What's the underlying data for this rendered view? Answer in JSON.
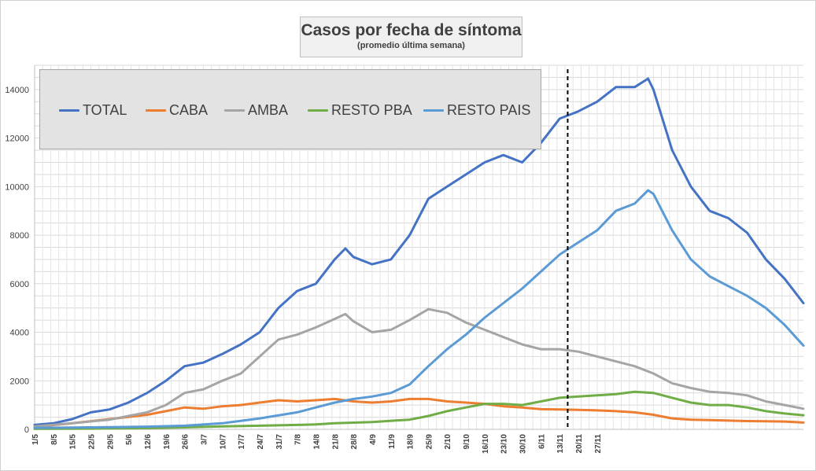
{
  "title": "Casos por fecha de síntoma",
  "subtitle": "(promedio última semana)",
  "chart_data": {
    "type": "line",
    "ylim": [
      0,
      15000
    ],
    "yticks": [
      0,
      2000,
      4000,
      6000,
      8000,
      10000,
      12000,
      14000
    ],
    "grid": true,
    "legend_position": "top-left",
    "x_tick_labels": [
      "1/5",
      "8/5",
      "15/5",
      "22/5",
      "29/5",
      "5/6",
      "12/6",
      "19/6",
      "26/6",
      "3/7",
      "10/7",
      "17/7",
      "24/7",
      "31/7",
      "7/8",
      "14/8",
      "21/8",
      "28/8",
      "4/9",
      "11/9",
      "18/9",
      "25/9",
      "2/10",
      "9/10",
      "16/10",
      "23/10",
      "30/10",
      "6/11",
      "13/11",
      "20/11",
      "27/11"
    ],
    "reference_line_day": 199,
    "series": [
      {
        "name": "TOTAL",
        "color": "#4472c4",
        "points": [
          [
            0,
            180
          ],
          [
            7,
            250
          ],
          [
            14,
            420
          ],
          [
            21,
            700
          ],
          [
            28,
            820
          ],
          [
            35,
            1100
          ],
          [
            42,
            1500
          ],
          [
            49,
            2000
          ],
          [
            56,
            2600
          ],
          [
            63,
            2750
          ],
          [
            70,
            3100
          ],
          [
            77,
            3500
          ],
          [
            84,
            4000
          ],
          [
            91,
            5000
          ],
          [
            98,
            5700
          ],
          [
            105,
            6000
          ],
          [
            112,
            7000
          ],
          [
            116,
            7450
          ],
          [
            119,
            7100
          ],
          [
            126,
            6800
          ],
          [
            133,
            7000
          ],
          [
            140,
            8000
          ],
          [
            147,
            9500
          ],
          [
            154,
            10000
          ],
          [
            161,
            10500
          ],
          [
            168,
            11000
          ],
          [
            175,
            11300
          ],
          [
            182,
            11000
          ],
          [
            189,
            11800
          ],
          [
            196,
            12800
          ],
          [
            203,
            13100
          ],
          [
            210,
            13500
          ],
          [
            217,
            14100
          ],
          [
            224,
            14100
          ],
          [
            229,
            14450
          ],
          [
            231,
            14000
          ],
          [
            238,
            11500
          ],
          [
            245,
            10000
          ],
          [
            252,
            9000
          ],
          [
            259,
            8700
          ],
          [
            266,
            8100
          ],
          [
            273,
            7000
          ],
          [
            280,
            6200
          ],
          [
            287,
            5200
          ]
        ]
      },
      {
        "name": "CABA",
        "color": "#ed7d31",
        "points": [
          [
            0,
            100
          ],
          [
            14,
            250
          ],
          [
            28,
            420
          ],
          [
            42,
            600
          ],
          [
            49,
            750
          ],
          [
            56,
            900
          ],
          [
            63,
            850
          ],
          [
            70,
            950
          ],
          [
            77,
            1000
          ],
          [
            84,
            1100
          ],
          [
            91,
            1200
          ],
          [
            98,
            1150
          ],
          [
            105,
            1200
          ],
          [
            112,
            1250
          ],
          [
            119,
            1150
          ],
          [
            126,
            1100
          ],
          [
            133,
            1150
          ],
          [
            140,
            1250
          ],
          [
            147,
            1250
          ],
          [
            154,
            1150
          ],
          [
            161,
            1100
          ],
          [
            168,
            1050
          ],
          [
            175,
            950
          ],
          [
            182,
            900
          ],
          [
            189,
            830
          ],
          [
            196,
            820
          ],
          [
            203,
            800
          ],
          [
            210,
            780
          ],
          [
            217,
            750
          ],
          [
            224,
            700
          ],
          [
            231,
            600
          ],
          [
            238,
            450
          ],
          [
            245,
            400
          ],
          [
            252,
            380
          ],
          [
            259,
            360
          ],
          [
            266,
            340
          ],
          [
            273,
            330
          ],
          [
            280,
            320
          ],
          [
            287,
            280
          ]
        ]
      },
      {
        "name": "AMBA",
        "color": "#a5a5a5",
        "points": [
          [
            0,
            120
          ],
          [
            14,
            250
          ],
          [
            28,
            400
          ],
          [
            42,
            700
          ],
          [
            49,
            1000
          ],
          [
            56,
            1500
          ],
          [
            63,
            1650
          ],
          [
            70,
            2000
          ],
          [
            77,
            2300
          ],
          [
            84,
            3000
          ],
          [
            91,
            3700
          ],
          [
            98,
            3900
          ],
          [
            105,
            4200
          ],
          [
            112,
            4550
          ],
          [
            116,
            4750
          ],
          [
            119,
            4450
          ],
          [
            126,
            4000
          ],
          [
            133,
            4100
          ],
          [
            140,
            4500
          ],
          [
            147,
            4950
          ],
          [
            154,
            4800
          ],
          [
            161,
            4400
          ],
          [
            168,
            4100
          ],
          [
            175,
            3800
          ],
          [
            182,
            3500
          ],
          [
            189,
            3300
          ],
          [
            196,
            3300
          ],
          [
            203,
            3200
          ],
          [
            210,
            3000
          ],
          [
            217,
            2800
          ],
          [
            224,
            2600
          ],
          [
            231,
            2300
          ],
          [
            238,
            1900
          ],
          [
            245,
            1700
          ],
          [
            252,
            1550
          ],
          [
            259,
            1500
          ],
          [
            266,
            1400
          ],
          [
            273,
            1150
          ],
          [
            280,
            1000
          ],
          [
            287,
            850
          ]
        ]
      },
      {
        "name": "RESTO PBA",
        "color": "#70ad47",
        "points": [
          [
            0,
            20
          ],
          [
            21,
            30
          ],
          [
            42,
            50
          ],
          [
            56,
            80
          ],
          [
            70,
            120
          ],
          [
            84,
            150
          ],
          [
            98,
            180
          ],
          [
            105,
            200
          ],
          [
            112,
            250
          ],
          [
            126,
            300
          ],
          [
            140,
            400
          ],
          [
            147,
            550
          ],
          [
            154,
            750
          ],
          [
            161,
            900
          ],
          [
            168,
            1050
          ],
          [
            175,
            1050
          ],
          [
            182,
            1000
          ],
          [
            189,
            1150
          ],
          [
            196,
            1300
          ],
          [
            203,
            1350
          ],
          [
            210,
            1400
          ],
          [
            217,
            1450
          ],
          [
            224,
            1550
          ],
          [
            231,
            1500
          ],
          [
            238,
            1300
          ],
          [
            245,
            1100
          ],
          [
            252,
            1000
          ],
          [
            259,
            1000
          ],
          [
            266,
            900
          ],
          [
            273,
            750
          ],
          [
            280,
            650
          ],
          [
            287,
            580
          ]
        ]
      },
      {
        "name": "RESTO PAIS",
        "color": "#5b9bd5",
        "points": [
          [
            0,
            60
          ],
          [
            14,
            70
          ],
          [
            28,
            90
          ],
          [
            42,
            110
          ],
          [
            56,
            150
          ],
          [
            70,
            250
          ],
          [
            84,
            450
          ],
          [
            98,
            700
          ],
          [
            105,
            900
          ],
          [
            112,
            1100
          ],
          [
            119,
            1250
          ],
          [
            126,
            1350
          ],
          [
            133,
            1500
          ],
          [
            140,
            1850
          ],
          [
            147,
            2600
          ],
          [
            154,
            3300
          ],
          [
            161,
            3900
          ],
          [
            168,
            4600
          ],
          [
            175,
            5200
          ],
          [
            182,
            5800
          ],
          [
            189,
            6500
          ],
          [
            196,
            7200
          ],
          [
            203,
            7700
          ],
          [
            210,
            8200
          ],
          [
            217,
            9000
          ],
          [
            224,
            9300
          ],
          [
            229,
            9850
          ],
          [
            231,
            9700
          ],
          [
            238,
            8200
          ],
          [
            245,
            7000
          ],
          [
            252,
            6300
          ],
          [
            259,
            5900
          ],
          [
            266,
            5500
          ],
          [
            273,
            5000
          ],
          [
            280,
            4300
          ],
          [
            287,
            3450
          ]
        ]
      }
    ]
  }
}
